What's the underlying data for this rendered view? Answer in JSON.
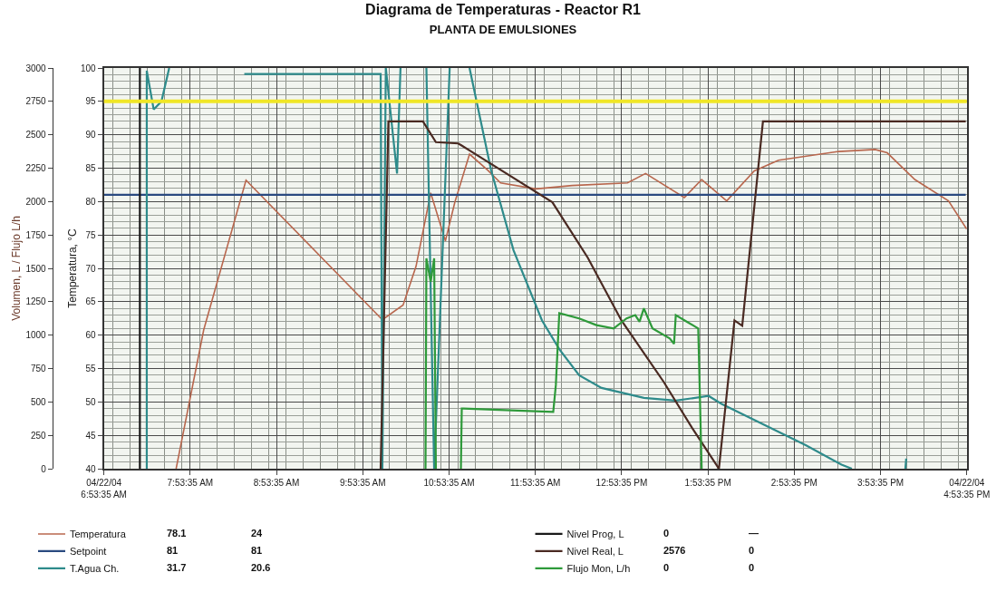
{
  "chart_data": {
    "type": "line",
    "title": "Diagrama de Temperaturas - Reactor R1",
    "subtitle": "PLANTA DE EMULSIONES",
    "ylabel": "Temperatura, °C",
    "y2label": "Volumen, L / Flujo L/h",
    "xlim": [
      6.893,
      16.893
    ],
    "xticks": [
      {
        "value": 6.893,
        "label": "04/22/04\n6:53:35 AM"
      },
      {
        "value": 7.893,
        "label": "7:53:35 AM"
      },
      {
        "value": 8.893,
        "label": "8:53:35 AM"
      },
      {
        "value": 9.893,
        "label": "9:53:35 AM"
      },
      {
        "value": 10.893,
        "label": "10:53:35 AM"
      },
      {
        "value": 11.893,
        "label": "11:53:35 AM"
      },
      {
        "value": 12.893,
        "label": "12:53:35 PM"
      },
      {
        "value": 13.893,
        "label": "1:53:35 PM"
      },
      {
        "value": 14.893,
        "label": "2:53:35 PM"
      },
      {
        "value": 15.893,
        "label": "3:53:35 PM"
      },
      {
        "value": 16.893,
        "label": "04/22/04\n4:53:35 PM"
      }
    ],
    "ylim": [
      40,
      100
    ],
    "yticks": [
      40,
      45,
      50,
      55,
      60,
      65,
      70,
      75,
      80,
      85,
      90,
      95,
      100
    ],
    "y2lim": [
      0,
      3000
    ],
    "y2ticks": [
      0,
      250,
      500,
      750,
      1000,
      1250,
      1500,
      1750,
      2000,
      2250,
      2500,
      2750,
      3000
    ],
    "grid": true,
    "legend": "bottom left",
    "marker": "none",
    "line_style": "solid",
    "ref_lines": [
      {
        "axis": "y",
        "value": 95,
        "color": "#f0e626"
      }
    ],
    "series": [
      {
        "name": "Temperatura",
        "color": "#b8674e",
        "axis": "y",
        "x": [
          7.73,
          8.05,
          8.54,
          10.12,
          10.36,
          10.51,
          10.68,
          10.85,
          10.96,
          11.13,
          11.34,
          11.49,
          11.9,
          12.32,
          12.96,
          13.17,
          13.62,
          13.82,
          14.11,
          14.43,
          14.71,
          15.41,
          15.83,
          15.97,
          16.29,
          16.68,
          16.89
        ],
        "values": [
          40,
          60.8,
          83.2,
          62.3,
          64.5,
          70.3,
          81.3,
          74.1,
          79.9,
          87.1,
          84.7,
          82.8,
          81.9,
          82.4,
          82.8,
          84.2,
          80.6,
          83.3,
          80.1,
          84.6,
          86.2,
          87.5,
          87.8,
          87.3,
          83.3,
          80.1,
          75.9
        ]
      },
      {
        "name": "Setpoint",
        "color": "#2a4a80",
        "axis": "y",
        "x": [
          6.893,
          16.88
        ],
        "values": [
          81,
          81
        ]
      },
      {
        "name": "T.Agua Ch.",
        "color": "#2e8b8b",
        "axis": "y",
        "x": [
          7.39,
          7.39,
          7.47,
          7.56,
          7.65,
          7.66,
          8.52,
          10.1,
          10.12,
          10.16,
          10.29,
          10.33,
          10.34,
          10.63,
          10.72,
          10.9,
          11.12,
          11.13,
          11.38,
          11.64,
          11.97,
          12.17,
          12.4,
          12.66,
          13.15,
          13.52,
          13.9,
          14.05,
          14.65,
          15.03,
          15.44,
          15.56,
          15.57,
          16.18,
          16.19
        ],
        "values": [
          40,
          99.6,
          93.8,
          95,
          100,
          null,
          99.1,
          99.1,
          40,
          100,
          84.2,
          100,
          null,
          100,
          40,
          100,
          null,
          100,
          84.7,
          72.7,
          62.2,
          57.9,
          54.0,
          52.1,
          50.6,
          50.2,
          50.9,
          49.7,
          45.9,
          43.5,
          40.6,
          40,
          null,
          40,
          41.5
        ]
      },
      {
        "name": "Nivel Prog, L",
        "color": "#1a1a1a",
        "axis": "y2",
        "x": [
          7.31,
          7.31
        ],
        "values": [
          0,
          3000
        ]
      },
      {
        "name": "Nivel Real, L",
        "color": "#4a2a22",
        "axis": "y2",
        "x": [
          10.1,
          10.19,
          10.59,
          10.74,
          11.0,
          11.15,
          12.09,
          12.5,
          12.89,
          13.38,
          13.71,
          14.02,
          14.2,
          14.29,
          14.53,
          16.88
        ],
        "values": [
          0,
          2600,
          2600,
          2445,
          2435,
          2375,
          1995,
          1580,
          1110,
          650,
          305,
          0,
          1110,
          1070,
          2600,
          2600
        ]
      },
      {
        "name": "Flujo Mon, L/h",
        "color": "#2e9a3a",
        "axis": "y2",
        "x": [
          10.62,
          10.63,
          10.68,
          10.72,
          10.74,
          10.75,
          11.03,
          11.04,
          11.06,
          12.1,
          12.13,
          12.17,
          12.4,
          12.6,
          12.8,
          12.95,
          13.05,
          13.1,
          13.15,
          13.25,
          13.45,
          13.5,
          13.52,
          13.65,
          13.78,
          13.82
        ],
        "values": [
          0,
          1575,
          1400,
          1575,
          0,
          null,
          0,
          450,
          450,
          425,
          625,
          1165,
          1125,
          1075,
          1050,
          1125,
          1150,
          1100,
          1200,
          1050,
          975,
          935,
          1150,
          1100,
          1050,
          0
        ]
      }
    ],
    "annotations": [
      "78.1",
      "24",
      "81",
      "81",
      "31.7",
      "20.6",
      "0",
      "—",
      "2576",
      "0",
      "0",
      "0"
    ]
  }
}
